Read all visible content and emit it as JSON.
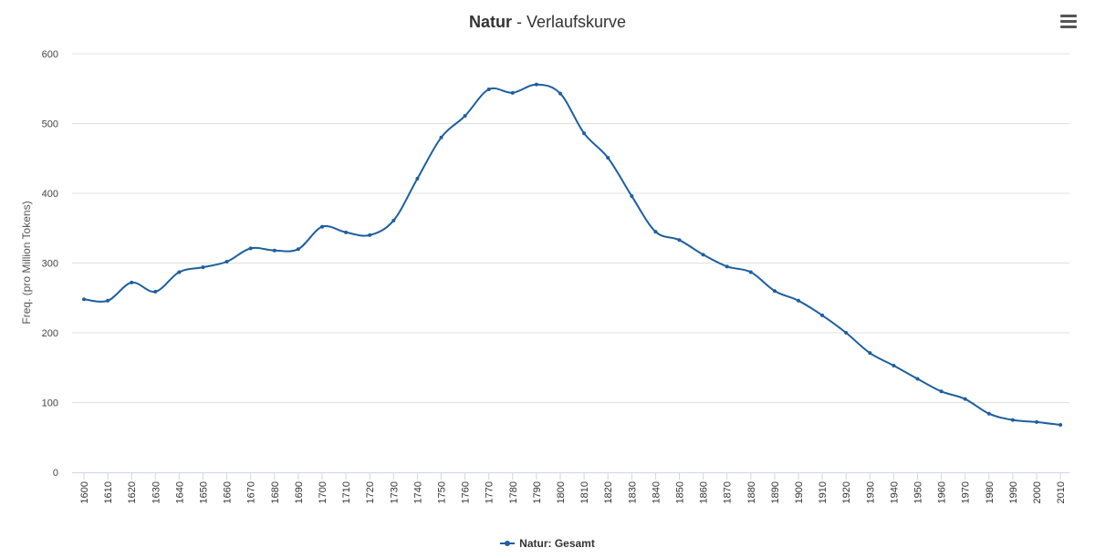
{
  "chart_data": {
    "type": "line",
    "title_bold": "Natur",
    "title_rest": " - Verlaufskurve",
    "ylabel": "Freq. (pro Million Tokens)",
    "xlabel": "",
    "ylim": [
      0,
      600
    ],
    "yticks": [
      0,
      100,
      200,
      300,
      400,
      500,
      600
    ],
    "grid": true,
    "legend_position": "bottom-center",
    "x": [
      1600,
      1610,
      1620,
      1630,
      1640,
      1650,
      1660,
      1670,
      1680,
      1690,
      1700,
      1710,
      1720,
      1730,
      1740,
      1750,
      1760,
      1770,
      1780,
      1790,
      1800,
      1810,
      1820,
      1830,
      1840,
      1850,
      1860,
      1870,
      1880,
      1890,
      1900,
      1910,
      1920,
      1930,
      1940,
      1950,
      1960,
      1970,
      1980,
      1990,
      2000,
      2010
    ],
    "series": [
      {
        "name": "Natur: Gesamt",
        "color": "#1d5fa0",
        "values": [
          248,
          246,
          272,
          259,
          287,
          294,
          302,
          321,
          318,
          320,
          352,
          344,
          340,
          361,
          421,
          480,
          511,
          549,
          544,
          556,
          543,
          486,
          451,
          396,
          345,
          333,
          312,
          295,
          287,
          260,
          246,
          225,
          200,
          171,
          153,
          134,
          116,
          105,
          84,
          75,
          72,
          68
        ]
      }
    ]
  },
  "menu": {
    "icon": "hamburger-menu-icon"
  },
  "colors": {
    "grid": "#e0e0e0",
    "axis": "#ccd6eb",
    "text": "#333333"
  }
}
